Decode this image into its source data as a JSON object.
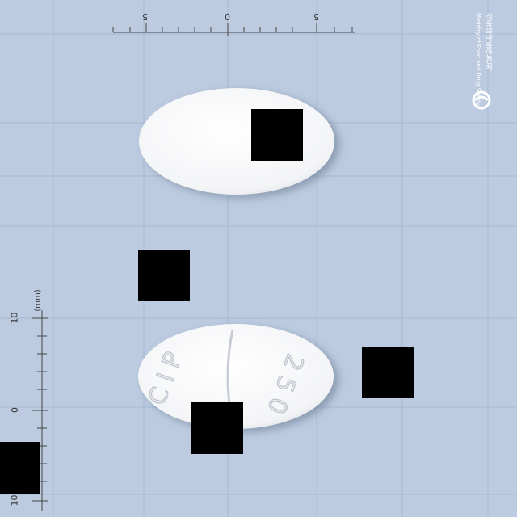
{
  "ruler_top": {
    "labels": [
      "5",
      "0",
      "5"
    ]
  },
  "ruler_left": {
    "labels": [
      "10",
      "0",
      "10"
    ],
    "unit": "(mm)"
  },
  "logo": {
    "name_ko": "식품의약품안전처",
    "name_en": "Ministry of Food and Drug Safety"
  },
  "tablet_back": {
    "imprint_left": "C I P",
    "imprint_right": "2 5 0"
  },
  "colors": {
    "background": "#bccbe0",
    "grid_line": "#9fb3cf",
    "tablet": "#ffffff",
    "mask": "#000000"
  }
}
